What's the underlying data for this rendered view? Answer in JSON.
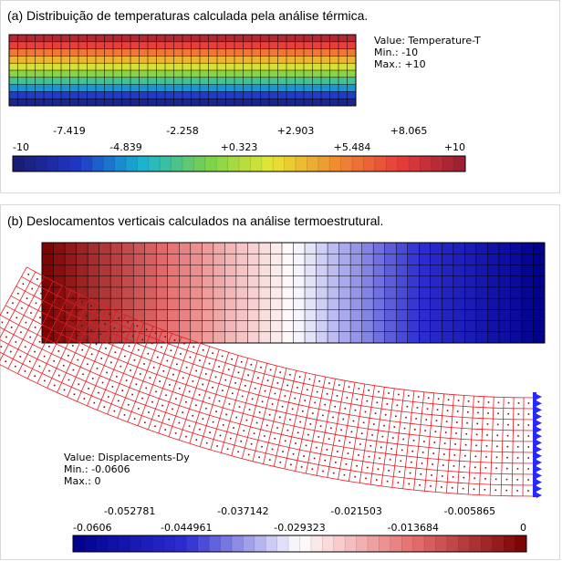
{
  "panel_a": {
    "title": "(a) Distribuição de temperaturas calculada pela análise térmica.",
    "info": {
      "value": "Value: Temperature-T",
      "min": "Min.: -10",
      "max": "Max.: +10"
    },
    "colorbar": {
      "labels_top": [
        "-7.419",
        "-2.258",
        "+2.903",
        "+8.065"
      ],
      "labels_bottom": [
        "-10",
        "-4.839",
        "+0.323",
        "+5.484",
        "+10"
      ],
      "min": -10,
      "max": 10
    },
    "colors": [
      "#1a1a6e",
      "#1f37c8",
      "#19b4d2",
      "#78d24b",
      "#e6e632",
      "#f08c32",
      "#e63c3c",
      "#961e32"
    ]
  },
  "panel_b": {
    "title": "(b) Deslocamentos verticais calculados na análise termoestrutural.",
    "info": {
      "value": "Value: Displacements-Dy",
      "min": "Min.: -0.0606",
      "max": "Max.: 0"
    },
    "colorbar": {
      "labels_top": [
        "-0.052781",
        "-0.037142",
        "-0.021503",
        "-0.005865"
      ],
      "labels_bottom": [
        "-0.0606",
        "-0.044961",
        "-0.029323",
        "-0.013684",
        "0"
      ],
      "min": -0.0606,
      "max": 0
    },
    "colors": [
      "#00008c",
      "#2d2dd2",
      "#ffffff",
      "#e66e6e",
      "#7a0000"
    ],
    "mesh_color": "#e8191e",
    "support_color": "#2828ff"
  }
}
